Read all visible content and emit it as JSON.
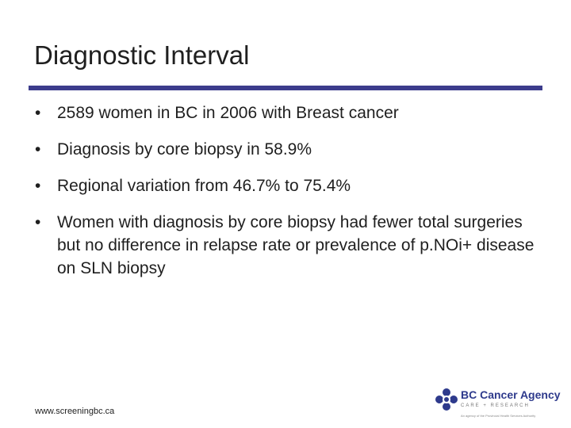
{
  "slide": {
    "title": "Diagnostic Interval",
    "bullets": [
      "2589 women in BC in 2006 with Breast cancer",
      "Diagnosis by core biopsy in 58.9%",
      "Regional variation from 46.7% to 75.4%",
      "Women with diagnosis by core biopsy had fewer total surgeries but no difference in relapse rate or prevalence of p.NOi+ disease on SLN biopsy"
    ],
    "bullet_glyph": "•",
    "footer_url": "www.screeningbc.ca"
  },
  "logo": {
    "name": "BC Cancer Agency",
    "tagline": "CARE + RESEARCH",
    "subtitle": "An agency of the Provincial Health Services Authority"
  },
  "colors": {
    "rule": "#3c3c8c",
    "logo_blue": "#2e3a8c"
  },
  "icons": {
    "logo_mark": "bc-cancer-agency-logo-icon"
  }
}
